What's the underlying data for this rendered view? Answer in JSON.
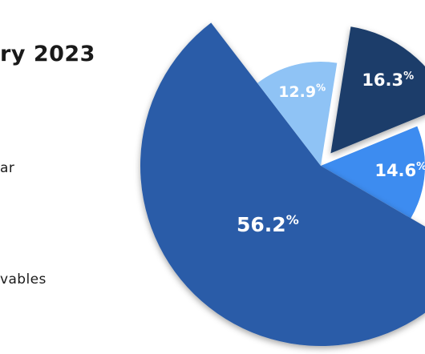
{
  "chart_data": {
    "type": "pie",
    "title": "ry 2023",
    "series": [
      {
        "slices": [
          {
            "label": "",
            "value": 16.3,
            "value_text": "16.3",
            "color": "#1a3d6b",
            "exploded": true
          },
          {
            "label": "",
            "value": 14.6,
            "value_text": "14.6",
            "color": "#3d8cf0",
            "exploded": false
          },
          {
            "label": "",
            "value": 56.2,
            "value_text": "56.2",
            "color": "#2a5ca8",
            "exploded": true
          },
          {
            "label": "",
            "value": 12.9,
            "value_text": "12.9",
            "color": "#8fc3f5",
            "exploded": false
          }
        ]
      }
    ],
    "unit_symbol": "%",
    "legend": {
      "position": "left",
      "entries": [
        "ar",
        "vables"
      ]
    }
  }
}
